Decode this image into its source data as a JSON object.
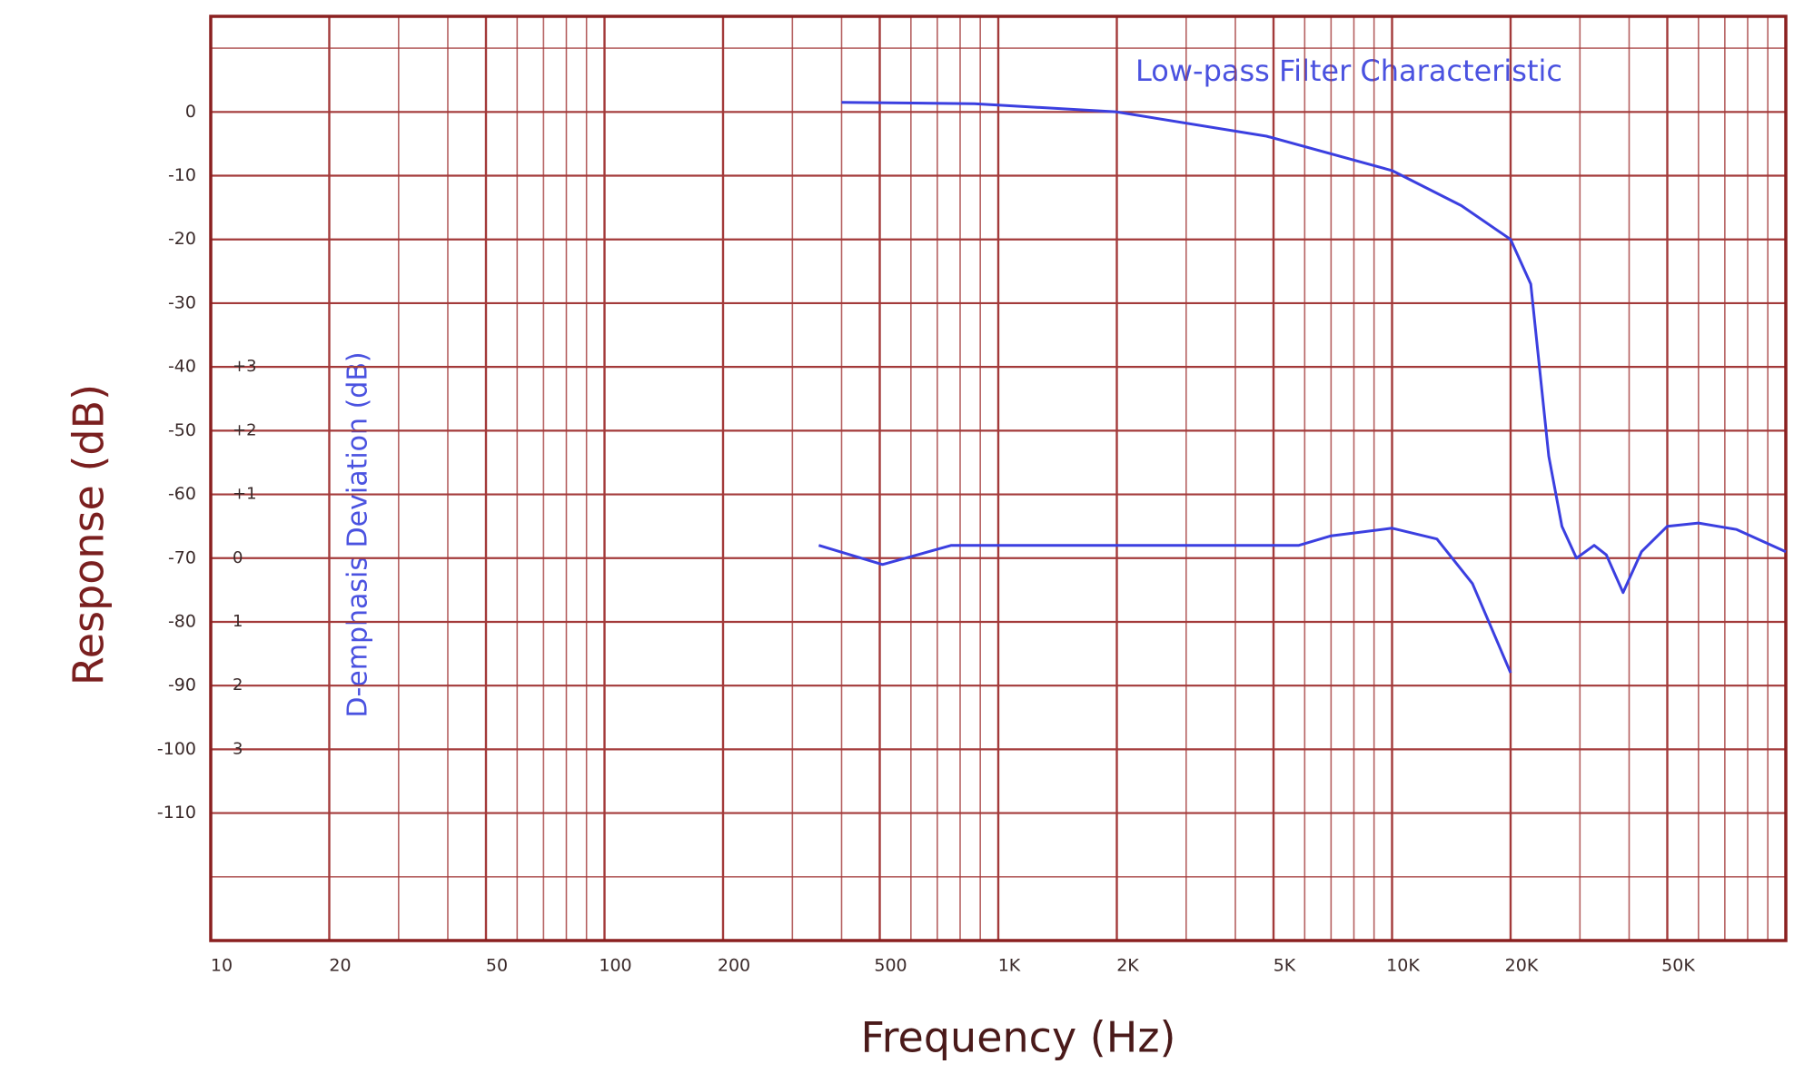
{
  "chart_data": {
    "type": "line",
    "xlabel": "Frequency (Hz)",
    "ylabel": "Response (dB)",
    "y2label": "D-emphasis Deviation (dB)",
    "annotation": "Low-pass Filter Characteristic",
    "xscale": "log",
    "grid": true,
    "xlim": [
      10,
      100000
    ],
    "xticks": [
      10,
      20,
      50,
      100,
      200,
      500,
      {
        "value": 1000,
        "label": "1K"
      },
      {
        "value": 2000,
        "label": "2K"
      },
      {
        "value": 5000,
        "label": "5K"
      },
      {
        "value": 10000,
        "label": "10K"
      },
      {
        "value": 20000,
        "label": "20K"
      },
      {
        "value": 50000,
        "label": "50K"
      }
    ],
    "ylim": [
      -130,
      15
    ],
    "yticks": [
      0,
      -10,
      -20,
      -30,
      -40,
      -50,
      -60,
      -70,
      -80,
      -90,
      -100,
      -110
    ],
    "y2lim": [
      -6,
      8.5
    ],
    "y2ticks": [
      {
        "value": 3,
        "label": "+3"
      },
      {
        "value": 2,
        "label": "+2"
      },
      {
        "value": 1,
        "label": "+1"
      },
      0,
      {
        "value": -1,
        "label": "1"
      },
      {
        "value": -2,
        "label": "2"
      },
      {
        "value": -3,
        "label": "3"
      }
    ],
    "series": [
      {
        "name": "Low-pass Filter Characteristic",
        "color": "#3b3fe0",
        "x": [
          400,
          870,
          2000,
          4800,
          10000,
          15000,
          20000,
          22500,
          25000,
          27000,
          29400,
          32600,
          35000,
          38600,
          43000,
          50000,
          60000,
          75000,
          100000
        ],
        "values": [
          1.5,
          1.3,
          0,
          -3.8,
          -9.2,
          -14.7,
          -20,
          -27,
          -54,
          -65,
          -70,
          -68,
          -69.5,
          -75.4,
          -69,
          -65,
          -64.5,
          -65.5,
          -69
        ]
      },
      {
        "color": "#3b3fe0",
        "axis": "y2",
        "x": [
          350,
          508,
          760,
          2400,
          5800,
          7000,
          10000,
          13000,
          16000,
          20000
        ],
        "values": [
          0.2,
          -0.1,
          0.2,
          0.2,
          0.2,
          0.35,
          0.47,
          0.3,
          -0.4,
          -1.8
        ]
      }
    ]
  }
}
